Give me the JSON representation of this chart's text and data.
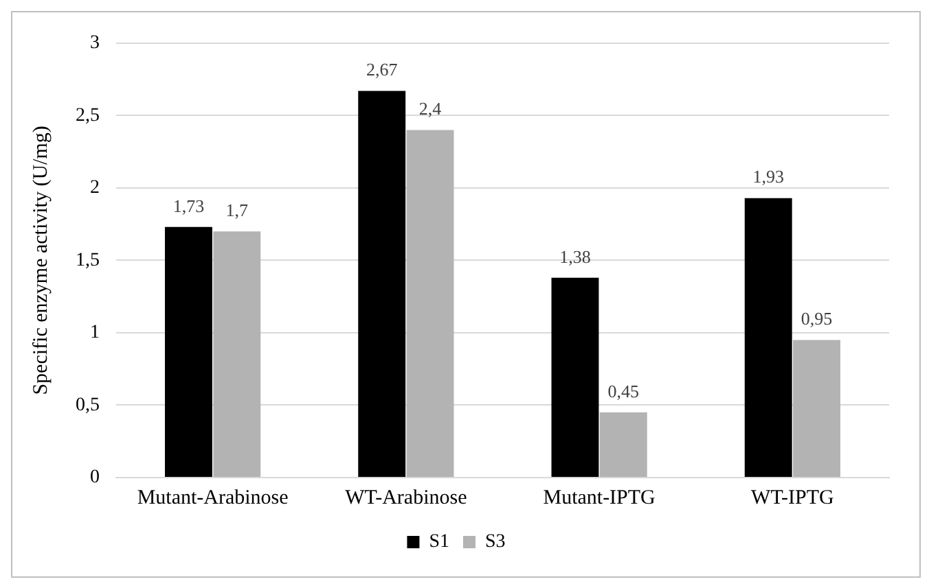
{
  "chart_data": {
    "type": "bar",
    "ylabel": "Specific enzyme activity (U/mg)",
    "categories": [
      "Mutant-Arabinose",
      "WT-Arabinose",
      "Mutant-IPTG",
      "WT-IPTG"
    ],
    "series": [
      {
        "name": "S1",
        "color": "#000000",
        "values": [
          1.73,
          2.67,
          1.38,
          1.93
        ],
        "value_labels": [
          "1,73",
          "2,67",
          "1,38",
          "1,93"
        ]
      },
      {
        "name": "S3",
        "color": "#b3b3b3",
        "values": [
          1.7,
          2.4,
          0.45,
          0.95
        ],
        "value_labels": [
          "1,7",
          "2,4",
          "0,45",
          "0,95"
        ]
      }
    ],
    "ylim": [
      0,
      3
    ],
    "yticks": [
      0,
      {
        "value": 0.5,
        "label": "0,5"
      },
      1,
      {
        "value": 1.5,
        "label": "1,5"
      },
      2,
      {
        "value": 2.5,
        "label": "2,5"
      },
      3
    ],
    "grid": "y",
    "legend": "bottom"
  }
}
